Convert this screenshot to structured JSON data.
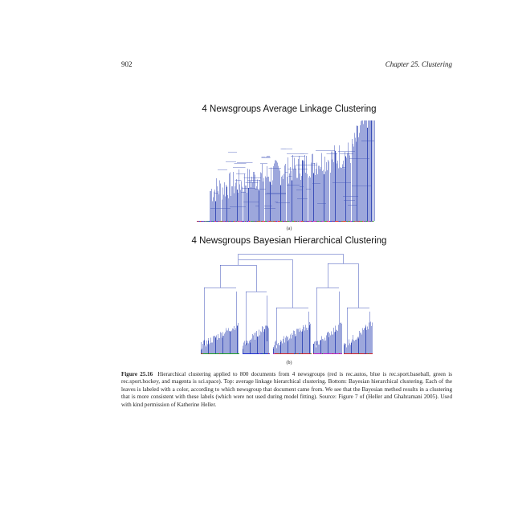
{
  "header": {
    "page_number": "902",
    "chapter": "Chapter 25.  Clustering"
  },
  "figure": {
    "panel_a": {
      "title": "4 Newsgroups Average Linkage Clustering",
      "label": "(a)"
    },
    "panel_b": {
      "title": "4 Newsgroups Bayesian Hierarchical Clustering",
      "label": "(b)"
    },
    "caption": {
      "number": "Figure 25.16",
      "text": "Hierarchical clustering applied to 800 documents from 4 newsgroups (red is rec.autos, blue is rec.sport.baseball, green is rec.sport.hockey, and magenta is sci.space). Top: average linkage hierarchical clustering. Bottom: Bayesian hierarchical clustering. Each of the leaves is labeled with a color, according to which newsgroup that document came from. We see that the Bayesian method results in a clustering that is more consistent with these labels (which were not used during model fitting). Source: Figure 7 of (Heller and Ghahramani 2005). Used with kind permission of Katherine Heller."
    }
  },
  "colors": {
    "dendrogram_line": "#3b4fb8",
    "rec_autos": "#d62020",
    "rec_sport_baseball": "#2030d0",
    "rec_sport_hockey": "#20a020",
    "sci_space": "#c020c0"
  }
}
